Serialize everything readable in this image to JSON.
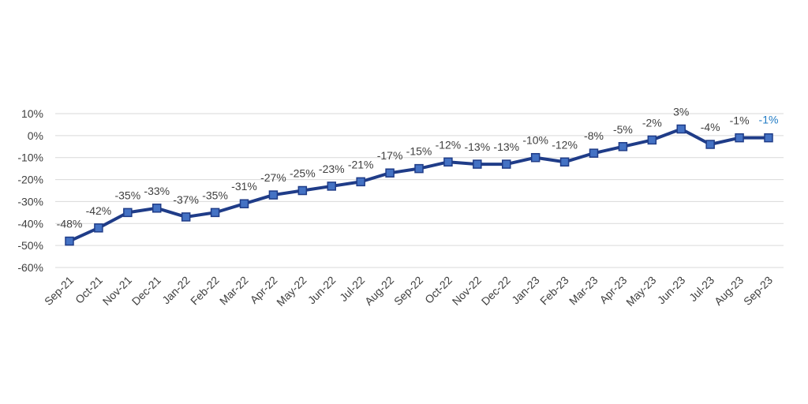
{
  "chart_data": {
    "type": "line",
    "title": "",
    "xlabel": "",
    "ylabel": "",
    "ylim": [
      -60,
      10
    ],
    "yticks": [
      10,
      0,
      -10,
      -20,
      -30,
      -40,
      -50,
      -60
    ],
    "ytick_labels": [
      "10%",
      "0%",
      "-10%",
      "-20%",
      "-30%",
      "-40%",
      "-50%",
      "-60%"
    ],
    "grid": "horizontal",
    "legend": "none",
    "categories": [
      "Sep-21",
      "Oct-21",
      "Nov-21",
      "Dec-21",
      "Jan-22",
      "Feb-22",
      "Mar-22",
      "Apr-22",
      "May-22",
      "Jun-22",
      "Jul-22",
      "Aug-22",
      "Sep-22",
      "Oct-22",
      "Nov-22",
      "Dec-22",
      "Jan-23",
      "Feb-23",
      "Mar-23",
      "Apr-23",
      "May-23",
      "Jun-23",
      "Jul-23",
      "Aug-23",
      "Sep-23"
    ],
    "series": [
      {
        "values": [
          -48,
          -42,
          -35,
          -33,
          -37,
          -35,
          -31,
          -27,
          -25,
          -23,
          -21,
          -17,
          -15,
          -12,
          -13,
          -13,
          -10,
          -12,
          -8,
          -5,
          -2,
          3,
          -4,
          -1,
          -1
        ],
        "labels": [
          "-48%",
          "-42%",
          "-35%",
          "-33%",
          "-37%",
          "-35%",
          "-31%",
          "-27%",
          "-25%",
          "-23%",
          "-21%",
          "-17%",
          "-15%",
          "-12%",
          "-13%",
          "-13%",
          "-10%",
          "-12%",
          "-8%",
          "-5%",
          "-2%",
          "3%",
          "-4%",
          "-1%",
          "-1%"
        ],
        "line_color": "#1f3c88",
        "marker_color": "#4472c4",
        "label_color": "#404040",
        "highlight_label_color": "#1f7ac4"
      }
    ]
  }
}
